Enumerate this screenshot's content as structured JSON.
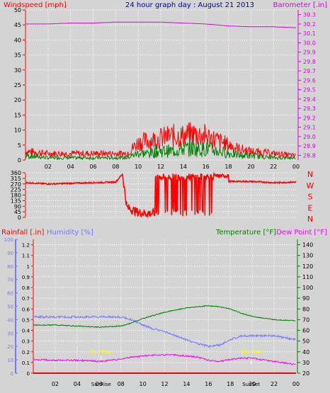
{
  "header": {
    "left_label": "Windspeed [mph]",
    "title": "24 hour graph day : August 21 2013",
    "right_label": "Barometer [.in]"
  },
  "colors": {
    "background": "#d4d4d4",
    "wind": "#ff0000",
    "gust_green": "#008000",
    "barometer": "#e000e0",
    "humidity": "#7878ff",
    "temperature": "#008000",
    "dewpoint": "#ff00ff",
    "rain": "#ff0000",
    "title": "#0000aa",
    "sun": "#ffff00"
  },
  "chart_data": [
    {
      "type": "line",
      "panel": "wind-barometer",
      "x_ticks": [
        "02",
        "04",
        "06",
        "08",
        "10",
        "12",
        "14",
        "16",
        "18",
        "20",
        "22",
        "00"
      ],
      "left_axis": {
        "label": "Windspeed [mph]",
        "ticks": [
          0,
          5,
          10,
          15,
          20,
          25,
          30,
          35,
          40,
          45,
          50
        ],
        "ylim": [
          0,
          50
        ]
      },
      "right_axis": {
        "label": "Barometer [.in]",
        "ticks": [
          28.8,
          28.9,
          29,
          29.1,
          29.2,
          29.3,
          29.4,
          29.5,
          29.6,
          29.7,
          29.8,
          29.9,
          30,
          30.1,
          30.2,
          30.3
        ],
        "ylim": [
          28.75,
          30.35
        ]
      },
      "grid": true,
      "series": [
        {
          "name": "Barometer [.in]",
          "axis": "right",
          "x": [
            0,
            2,
            4,
            6,
            8,
            10,
            12,
            14,
            16,
            18,
            20,
            22,
            24
          ],
          "values": [
            30.2,
            30.2,
            30.21,
            30.21,
            30.22,
            30.22,
            30.22,
            30.21,
            30.2,
            30.18,
            30.17,
            30.17,
            30.16
          ]
        },
        {
          "axis": "left",
          "x": [
            0,
            2,
            4,
            6,
            8,
            9,
            10,
            11,
            12,
            13,
            14,
            15,
            16,
            17,
            18,
            19,
            20,
            22,
            24
          ],
          "values": [
            4,
            3,
            3,
            3,
            3,
            3,
            8,
            9,
            10,
            11,
            11,
            12,
            11,
            9,
            7,
            5,
            4,
            3,
            2
          ]
        },
        {
          "axis": "left",
          "x": [
            0,
            2,
            4,
            6,
            8,
            9,
            10,
            11,
            12,
            13,
            14,
            15,
            16,
            17,
            18,
            19,
            20,
            22,
            24
          ],
          "values": [
            2,
            1,
            1,
            1,
            1,
            1,
            3,
            3,
            4,
            4,
            5,
            5,
            5,
            4,
            3,
            2,
            2,
            1,
            1
          ]
        }
      ]
    },
    {
      "type": "line",
      "panel": "wind-direction",
      "x_ticks": [
        "02",
        "04",
        "06",
        "08",
        "10",
        "12",
        "14",
        "16",
        "18",
        "20",
        "22",
        "00"
      ],
      "left_axis": {
        "ticks": [
          0,
          45,
          90,
          135,
          180,
          225,
          270,
          315,
          360
        ],
        "ylim": [
          0,
          360
        ]
      },
      "right_labels": [
        "N",
        "W",
        "S",
        "E",
        "N"
      ],
      "series": [
        {
          "axis": "left",
          "x": [
            0,
            2,
            4,
            6,
            8,
            8.6,
            9,
            10,
            11,
            12,
            13,
            14,
            15,
            16,
            17,
            18,
            20,
            22,
            24
          ],
          "values": [
            280,
            270,
            275,
            280,
            285,
            350,
            80,
            40,
            30,
            40,
            300,
            320,
            330,
            340,
            320,
            290,
            290,
            280,
            285
          ]
        }
      ]
    },
    {
      "type": "line",
      "panel": "rain-humidity-temperature",
      "x_ticks": [
        "02",
        "04",
        "06",
        "08",
        "10",
        "12",
        "14",
        "16",
        "18",
        "20",
        "22",
        "00"
      ],
      "rain_axis": {
        "label": "Rainfall [.in]",
        "ticks": [
          0,
          0.1,
          0.2,
          0.3,
          0.4,
          0.5,
          0.6,
          0.7,
          0.8,
          0.9,
          1,
          1.1,
          1.2
        ],
        "ylim": [
          0,
          1.25
        ]
      },
      "humidity_axis": {
        "label": "Humidity [%]",
        "ticks": [
          0,
          10,
          20,
          30,
          40,
          50,
          60,
          70,
          80,
          90,
          100
        ],
        "ylim": [
          0,
          100
        ]
      },
      "temperature_axis": {
        "label": "Temperature [°F]",
        "second_label": "Dew Point [°F]",
        "ticks": [
          20,
          30,
          40,
          50,
          60,
          70,
          80,
          90,
          100,
          110,
          120,
          130,
          140
        ],
        "ylim": [
          20,
          145
        ]
      },
      "sun_events": [
        {
          "hour": 6.2,
          "label": "Sun Rise",
          "axis_label": "SunRise"
        },
        {
          "hour": 19.9,
          "label": "Sun Set",
          "axis_label": "SunSet"
        }
      ],
      "series": [
        {
          "name": "Humidity [%]",
          "axis": "humidity",
          "x": [
            0,
            2,
            4,
            6,
            8,
            9,
            10,
            11,
            12,
            13,
            14,
            15,
            16,
            17,
            18,
            19,
            20,
            22,
            24
          ],
          "values": [
            42,
            42,
            42,
            42,
            42,
            40,
            36,
            33,
            31,
            28,
            25,
            22,
            20,
            21,
            25,
            28,
            28,
            28,
            25
          ]
        },
        {
          "name": "Temperature [°F]",
          "axis": "temperature",
          "x": [
            0,
            2,
            4,
            6,
            8,
            9,
            10,
            11,
            12,
            13,
            14,
            15,
            16,
            17,
            18,
            19,
            20,
            22,
            24
          ],
          "values": [
            65,
            65,
            64,
            63,
            64,
            67,
            71,
            74,
            77,
            79,
            81,
            82,
            83,
            82,
            80,
            76,
            73,
            70,
            69
          ]
        },
        {
          "name": "Dew Point [°F]",
          "axis": "temperature",
          "x": [
            0,
            2,
            4,
            6,
            8,
            9,
            10,
            11,
            12,
            13,
            14,
            15,
            16,
            17,
            18,
            19,
            20,
            22,
            24
          ],
          "values": [
            33,
            32,
            32,
            31,
            33,
            35,
            36,
            37,
            37,
            37,
            36,
            35,
            32,
            31,
            33,
            34,
            34,
            31,
            28
          ]
        },
        {
          "name": "Rainfall [.in]",
          "axis": "rain",
          "x": [
            0,
            24
          ],
          "values": [
            0,
            0
          ]
        }
      ]
    }
  ]
}
